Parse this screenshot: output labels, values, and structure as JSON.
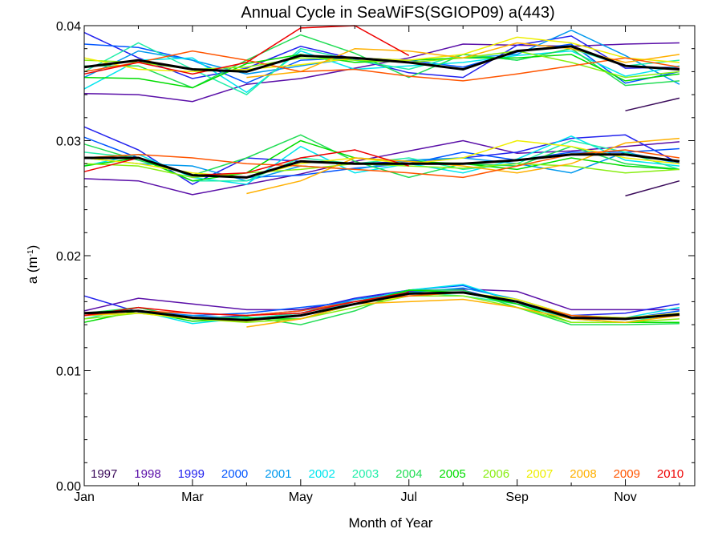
{
  "chart_data": {
    "type": "line",
    "title": "Annual Cycle in SeaWiFS(SGIOP09) a(443)",
    "xlabel": "Month of Year",
    "ylabel": "a (m⁻¹)",
    "ylabel_main": "a (m",
    "ylabel_sup": "-1",
    "ylabel_close": ")",
    "xlim": [
      1,
      12
    ],
    "ylim": [
      0,
      0.04
    ],
    "yticks": [
      0.0,
      0.01,
      0.02,
      0.03,
      0.04
    ],
    "ytick_labels": [
      "0.00",
      "0.01",
      "0.02",
      "0.03",
      "0.04"
    ],
    "xticks": [
      1,
      3,
      5,
      7,
      9,
      11
    ],
    "xtick_labels": [
      "Jan",
      "Mar",
      "May",
      "Jul",
      "Sep",
      "Nov"
    ],
    "grid": false,
    "legend_position": "bottom",
    "mean_color": "#000000",
    "series": [
      {
        "name": "1997",
        "color": "#3a0a5a",
        "groups": [
          [
            null,
            null,
            null,
            null,
            null,
            null,
            null,
            null,
            null,
            null,
            0.0326,
            0.0337
          ],
          [
            null,
            null,
            null,
            null,
            null,
            null,
            null,
            null,
            null,
            null,
            0.0252,
            0.0265
          ]
        ]
      },
      {
        "name": "1998",
        "color": "#5a0fa8",
        "groups": [
          [
            0.0341,
            0.034,
            0.0334,
            0.0349,
            0.0354,
            0.0363,
            0.0372,
            0.0384,
            0.0383,
            0.0382,
            0.0384,
            0.0385
          ],
          [
            0.0267,
            0.0265,
            0.0253,
            0.0262,
            0.0271,
            0.0282,
            0.0291,
            0.03,
            0.0289,
            0.0291,
            0.0295,
            0.0299
          ],
          [
            0.0152,
            0.0163,
            0.0158,
            0.0153,
            0.0153,
            0.0162,
            0.0169,
            0.0171,
            0.0169,
            0.0153,
            0.0153,
            0.0153
          ]
        ]
      },
      {
        "name": "1999",
        "color": "#2222ee",
        "groups": [
          [
            0.0394,
            0.0372,
            0.0354,
            0.0363,
            0.0382,
            0.0371,
            0.0359,
            0.0355,
            0.0383,
            0.0391,
            0.0363,
            0.0364
          ],
          [
            0.0312,
            0.0292,
            0.0262,
            0.0285,
            0.0282,
            0.028,
            0.0282,
            0.0285,
            0.029,
            0.0302,
            0.0305,
            0.028
          ],
          [
            0.0165,
            0.0151,
            0.0145,
            0.0148,
            0.0152,
            0.0163,
            0.017,
            0.017,
            0.0158,
            0.0148,
            0.015,
            0.0158
          ]
        ]
      },
      {
        "name": "2000",
        "color": "#0055ff",
        "groups": [
          [
            0.0384,
            0.0381,
            0.037,
            0.035,
            0.037,
            0.0372,
            0.037,
            0.0364,
            0.0377,
            0.0384,
            0.035,
            0.036
          ],
          [
            0.0303,
            0.0285,
            0.027,
            0.0268,
            0.027,
            0.0276,
            0.028,
            0.029,
            0.0283,
            0.029,
            0.029,
            0.0293
          ],
          [
            0.015,
            0.0152,
            0.0148,
            0.015,
            0.0155,
            0.016,
            0.017,
            0.0174,
            0.016,
            0.0145,
            0.0145,
            0.0152
          ]
        ]
      },
      {
        "name": "2001",
        "color": "#0099ee",
        "groups": [
          [
            0.0355,
            0.0378,
            0.037,
            0.0358,
            0.0365,
            0.0372,
            0.037,
            0.0372,
            0.0375,
            0.0396,
            0.0374,
            0.0349
          ],
          [
            0.0285,
            0.028,
            0.0278,
            0.0265,
            0.0278,
            0.0275,
            0.0283,
            0.0285,
            0.028,
            0.0272,
            0.029,
            0.028
          ],
          [
            0.0148,
            0.015,
            0.0148,
            0.0145,
            0.015,
            0.0162,
            0.0168,
            0.0172,
            0.0162,
            0.0148,
            0.0145,
            0.015
          ]
        ]
      },
      {
        "name": "2002",
        "color": "#00e5ee",
        "groups": [
          [
            0.0345,
            0.037,
            0.0372,
            0.0342,
            0.0378,
            0.0362,
            0.0365,
            0.0368,
            0.0374,
            0.0378,
            0.0356,
            0.0365
          ],
          [
            0.0278,
            0.0288,
            0.0268,
            0.0262,
            0.0295,
            0.0272,
            0.028,
            0.0272,
            0.0284,
            0.0304,
            0.0283,
            0.0278
          ],
          [
            0.015,
            0.0152,
            0.0141,
            0.0146,
            0.0148,
            0.016,
            0.017,
            0.0175,
            0.016,
            0.0148,
            0.0146,
            0.0155
          ]
        ]
      },
      {
        "name": "2003",
        "color": "#22eeaa",
        "groups": [
          [
            0.036,
            0.0385,
            0.0362,
            0.034,
            0.038,
            0.037,
            0.0362,
            0.0375,
            0.037,
            0.038,
            0.0365,
            0.037
          ],
          [
            0.029,
            0.0285,
            0.0265,
            0.0265,
            0.0285,
            0.028,
            0.0285,
            0.0275,
            0.028,
            0.03,
            0.029,
            0.0275
          ],
          [
            0.0145,
            0.0155,
            0.0145,
            0.0145,
            0.015,
            0.016,
            0.0168,
            0.0165,
            0.0158,
            0.0145,
            0.0142,
            0.015
          ]
        ]
      },
      {
        "name": "2004",
        "color": "#22dd55",
        "groups": [
          [
            0.0365,
            0.0365,
            0.0346,
            0.037,
            0.0392,
            0.0376,
            0.0355,
            0.0375,
            0.037,
            0.038,
            0.0348,
            0.0352
          ],
          [
            0.0297,
            0.0283,
            0.027,
            0.0285,
            0.0305,
            0.0282,
            0.0268,
            0.028,
            0.0278,
            0.0295,
            0.028,
            0.0275
          ],
          [
            0.015,
            0.0155,
            0.0145,
            0.0147,
            0.014,
            0.0152,
            0.017,
            0.017,
            0.0155,
            0.014,
            0.014,
            0.0141
          ]
        ]
      },
      {
        "name": "2005",
        "color": "#00dd00",
        "groups": [
          [
            0.0355,
            0.0354,
            0.0346,
            0.0367,
            0.0375,
            0.0368,
            0.037,
            0.0372,
            0.0372,
            0.0375,
            0.0352,
            0.0358
          ],
          [
            0.0278,
            0.0285,
            0.0265,
            0.0272,
            0.03,
            0.0285,
            0.0282,
            0.028,
            0.0275,
            0.0285,
            0.0278,
            0.0275
          ],
          [
            0.0142,
            0.0152,
            0.0143,
            0.0145,
            0.0145,
            0.0158,
            0.017,
            0.0168,
            0.0158,
            0.0142,
            0.0142,
            0.0142
          ]
        ]
      },
      {
        "name": "2006",
        "color": "#88ee11",
        "groups": [
          [
            0.037,
            0.0368,
            0.0362,
            0.0364,
            0.0372,
            0.037,
            0.0368,
            0.0372,
            0.0378,
            0.0368,
            0.0355,
            0.036
          ],
          [
            0.028,
            0.0278,
            0.0268,
            0.0272,
            0.0275,
            0.028,
            0.0278,
            0.0276,
            0.028,
            0.0278,
            0.0272,
            0.0275
          ],
          [
            0.0145,
            0.015,
            0.0145,
            0.0142,
            0.0145,
            0.0155,
            0.0165,
            0.0165,
            0.0155,
            0.0142,
            0.0142,
            0.0145
          ]
        ]
      },
      {
        "name": "2007",
        "color": "#eeee00",
        "groups": [
          [
            0.0372,
            0.0362,
            0.036,
            0.0362,
            0.0366,
            0.0372,
            0.037,
            0.0375,
            0.039,
            0.0385,
            0.0372,
            0.0368
          ],
          [
            0.0285,
            0.028,
            0.0272,
            0.0268,
            0.028,
            0.0285,
            0.028,
            0.0285,
            0.03,
            0.0295,
            0.0285,
            0.028
          ],
          [
            0.0148,
            0.015,
            0.0145,
            0.0143,
            0.0148,
            0.0158,
            0.0165,
            0.0168,
            0.0162,
            0.0148,
            0.0146,
            0.015
          ]
        ]
      },
      {
        "name": "2008",
        "color": "#ffb000",
        "groups": [
          [
            null,
            null,
            null,
            0.0355,
            0.036,
            0.038,
            0.0378,
            0.0372,
            0.0385,
            0.038,
            0.0368,
            0.0375
          ],
          [
            null,
            null,
            null,
            0.0254,
            0.0265,
            0.0285,
            0.0282,
            0.0278,
            0.0272,
            0.028,
            0.0298,
            0.0302
          ],
          [
            null,
            null,
            null,
            0.0138,
            0.0145,
            0.0158,
            0.016,
            0.0162,
            0.0155,
            0.0145,
            0.0142,
            0.0148
          ]
        ]
      },
      {
        "name": "2009",
        "color": "#ff5500",
        "groups": [
          [
            0.036,
            0.0368,
            0.0378,
            0.037,
            0.036,
            0.0362,
            0.0356,
            0.0352,
            0.0358,
            0.0365,
            0.0372,
            0.0364
          ],
          [
            0.0285,
            0.0288,
            0.0285,
            0.028,
            0.0278,
            0.0275,
            0.0272,
            0.0268,
            0.0278,
            0.0288,
            0.0292,
            0.0285
          ],
          [
            0.0148,
            0.0152,
            0.015,
            0.0148,
            0.0152,
            0.016,
            0.0165,
            0.0168,
            0.016,
            0.0148,
            0.0145,
            0.0148
          ]
        ]
      },
      {
        "name": "2010",
        "color": "#ee0000",
        "groups": [
          [
            0.0358,
            0.0368,
            0.0358,
            0.0368,
            0.0398,
            0.04,
            0.0374,
            null,
            null,
            null,
            null,
            null
          ],
          [
            0.0273,
            0.0285,
            0.027,
            0.0272,
            0.0285,
            0.0292,
            0.0278,
            null,
            null,
            null,
            null,
            null
          ],
          [
            0.0148,
            0.0155,
            0.015,
            0.0148,
            0.015,
            0.016,
            0.0168,
            null,
            null,
            null,
            null,
            null
          ]
        ]
      }
    ],
    "mean": [
      [
        0.0364,
        0.037,
        0.0362,
        0.036,
        0.0374,
        0.0372,
        0.0368,
        0.0362,
        0.0378,
        0.0382,
        0.0365,
        0.0362
      ],
      [
        0.0285,
        0.0285,
        0.027,
        0.0268,
        0.0282,
        0.028,
        0.028,
        0.028,
        0.0283,
        0.0288,
        0.0288,
        0.0282
      ],
      [
        0.015,
        0.0152,
        0.0146,
        0.0144,
        0.0148,
        0.0158,
        0.0167,
        0.0168,
        0.016,
        0.0146,
        0.0145,
        0.0149
      ]
    ]
  }
}
